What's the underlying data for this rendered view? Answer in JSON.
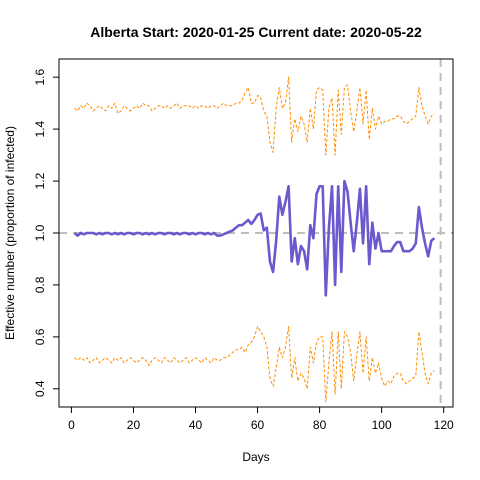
{
  "chart_data": {
    "type": "line",
    "title": "Alberta Start:  2020-01-25   Current date:  2020-05-22",
    "xlabel": "Days",
    "ylabel": "Effective number (proportion of infected)",
    "xlim": [
      -4,
      123
    ],
    "ylim": [
      0.33,
      1.67
    ],
    "xticks": [
      0,
      20,
      40,
      60,
      80,
      100,
      120
    ],
    "yticks": [
      0.4,
      0.6,
      0.8,
      1.0,
      1.2,
      1.4,
      1.6
    ],
    "ytick_labels": [
      "0.4",
      "0.6",
      "0.8",
      "1.0",
      "1.2",
      "1.4",
      "1.6"
    ],
    "reference_hline": 1.0,
    "reference_vline": 119,
    "grid": false,
    "legend": "none",
    "colors": {
      "estimate": "#6a5acd",
      "bounds": "#ff8c00",
      "reference": "#bebebe"
    },
    "series": [
      {
        "role": "estimate",
        "x": [
          1,
          2,
          3,
          4,
          5,
          6,
          7,
          8,
          9,
          10,
          11,
          12,
          13,
          14,
          15,
          16,
          17,
          18,
          19,
          20,
          21,
          22,
          23,
          24,
          25,
          26,
          27,
          28,
          29,
          30,
          31,
          32,
          33,
          34,
          35,
          36,
          37,
          38,
          39,
          40,
          41,
          42,
          43,
          44,
          45,
          46,
          47,
          48,
          49,
          50,
          51,
          52,
          53,
          54,
          55,
          56,
          57,
          58,
          59,
          60,
          61,
          62,
          63,
          64,
          65,
          66,
          67,
          68,
          69,
          70,
          71,
          72,
          73,
          74,
          75,
          76,
          77,
          78,
          79,
          80,
          81,
          82,
          83,
          84,
          85,
          86,
          87,
          88,
          89,
          90,
          91,
          92,
          93,
          94,
          95,
          96,
          97,
          98,
          99,
          100,
          101,
          102,
          103,
          104,
          105,
          106,
          107,
          108,
          109,
          110,
          111,
          112,
          113,
          114,
          115,
          116,
          117,
          118,
          119
        ],
        "y": [
          1.0,
          0.99,
          1.0,
          0.995,
          1.0,
          1.0,
          1.0,
          0.995,
          1.0,
          0.995,
          1.0,
          1.0,
          0.995,
          1.0,
          0.995,
          1.0,
          0.995,
          1.0,
          1.0,
          0.995,
          1.0,
          1.0,
          0.995,
          1.0,
          0.995,
          1.0,
          0.995,
          1.0,
          1.0,
          0.995,
          1.0,
          1.0,
          0.995,
          1.0,
          0.995,
          1.0,
          1.0,
          0.995,
          1.0,
          0.995,
          1.0,
          1.0,
          0.995,
          1.0,
          0.995,
          1.0,
          0.99,
          0.99,
          0.995,
          1.0,
          1.005,
          1.01,
          1.02,
          1.03,
          1.03,
          1.04,
          1.05,
          1.035,
          1.05,
          1.07,
          1.075,
          1.01,
          1.02,
          0.89,
          0.85,
          0.97,
          1.14,
          1.07,
          1.12,
          1.18,
          0.89,
          0.98,
          0.88,
          0.95,
          0.93,
          0.86,
          1.03,
          0.98,
          1.15,
          1.18,
          1.18,
          0.76,
          1.02,
          1.18,
          0.8,
          1.18,
          0.85,
          1.2,
          1.16,
          1.04,
          0.93,
          1.04,
          1.17,
          0.96,
          1.18,
          0.88,
          1.04,
          0.94,
          1.0,
          0.93,
          0.93,
          0.93,
          0.93,
          0.95,
          0.965,
          0.965,
          0.93,
          0.93,
          0.93,
          0.94,
          0.96,
          1.1,
          1.02,
          0.96,
          0.91,
          0.97,
          0.98,
          null,
          null
        ]
      },
      {
        "role": "upper-bound",
        "x": [
          1,
          2,
          3,
          4,
          5,
          6,
          7,
          8,
          9,
          10,
          11,
          12,
          13,
          14,
          15,
          16,
          17,
          18,
          19,
          20,
          21,
          22,
          23,
          24,
          25,
          26,
          27,
          28,
          29,
          30,
          31,
          32,
          33,
          34,
          35,
          36,
          37,
          38,
          39,
          40,
          41,
          42,
          43,
          44,
          45,
          46,
          47,
          48,
          49,
          50,
          51,
          52,
          53,
          54,
          55,
          56,
          57,
          58,
          59,
          60,
          61,
          62,
          63,
          64,
          65,
          66,
          67,
          68,
          69,
          70,
          71,
          72,
          73,
          74,
          75,
          76,
          77,
          78,
          79,
          80,
          81,
          82,
          83,
          84,
          85,
          86,
          87,
          88,
          89,
          90,
          91,
          92,
          93,
          94,
          95,
          96,
          97,
          98,
          99,
          100,
          101,
          102,
          103,
          104,
          105,
          106,
          107,
          108,
          109,
          110,
          111,
          112,
          113,
          114,
          115,
          116,
          117,
          118,
          119
        ],
        "y": [
          1.48,
          1.47,
          1.49,
          1.48,
          1.5,
          1.49,
          1.47,
          1.48,
          1.49,
          1.48,
          1.47,
          1.49,
          1.48,
          1.5,
          1.46,
          1.47,
          1.49,
          1.48,
          1.47,
          1.48,
          1.49,
          1.48,
          1.5,
          1.49,
          1.49,
          1.47,
          1.48,
          1.49,
          1.49,
          1.48,
          1.49,
          1.48,
          1.49,
          1.5,
          1.48,
          1.49,
          1.49,
          1.49,
          1.48,
          1.49,
          1.48,
          1.49,
          1.49,
          1.48,
          1.49,
          1.49,
          1.48,
          1.49,
          1.5,
          1.49,
          1.49,
          1.49,
          1.5,
          1.5,
          1.51,
          1.54,
          1.56,
          1.5,
          1.5,
          1.53,
          1.52,
          1.47,
          1.45,
          1.35,
          1.31,
          1.48,
          1.56,
          1.48,
          1.5,
          1.6,
          1.35,
          1.44,
          1.39,
          1.45,
          1.42,
          1.35,
          1.48,
          1.4,
          1.55,
          1.56,
          1.55,
          1.3,
          1.48,
          1.52,
          1.3,
          1.55,
          1.38,
          1.56,
          1.57,
          1.47,
          1.39,
          1.47,
          1.56,
          1.42,
          1.55,
          1.36,
          1.48,
          1.4,
          1.45,
          1.42,
          1.43,
          1.43,
          1.44,
          1.44,
          1.45,
          1.45,
          1.43,
          1.42,
          1.43,
          1.44,
          1.45,
          1.56,
          1.49,
          1.45,
          1.42,
          1.45,
          1.46,
          null,
          null
        ]
      },
      {
        "role": "lower-bound",
        "x": [
          1,
          2,
          3,
          4,
          5,
          6,
          7,
          8,
          9,
          10,
          11,
          12,
          13,
          14,
          15,
          16,
          17,
          18,
          19,
          20,
          21,
          22,
          23,
          24,
          25,
          26,
          27,
          28,
          29,
          30,
          31,
          32,
          33,
          34,
          35,
          36,
          37,
          38,
          39,
          40,
          41,
          42,
          43,
          44,
          45,
          46,
          47,
          48,
          49,
          50,
          51,
          52,
          53,
          54,
          55,
          56,
          57,
          58,
          59,
          60,
          61,
          62,
          63,
          64,
          65,
          66,
          67,
          68,
          69,
          70,
          71,
          72,
          73,
          74,
          75,
          76,
          77,
          78,
          79,
          80,
          81,
          82,
          83,
          84,
          85,
          86,
          87,
          88,
          89,
          90,
          91,
          92,
          93,
          94,
          95,
          96,
          97,
          98,
          99,
          100,
          101,
          102,
          103,
          104,
          105,
          106,
          107,
          108,
          109,
          110,
          111,
          112,
          113,
          114,
          115,
          116,
          117,
          118,
          119
        ],
        "y": [
          0.52,
          0.51,
          0.52,
          0.51,
          0.52,
          0.5,
          0.51,
          0.52,
          0.5,
          0.51,
          0.52,
          0.51,
          0.5,
          0.52,
          0.51,
          0.52,
          0.5,
          0.51,
          0.52,
          0.51,
          0.5,
          0.51,
          0.52,
          0.51,
          0.49,
          0.51,
          0.52,
          0.51,
          0.5,
          0.52,
          0.51,
          0.5,
          0.52,
          0.51,
          0.5,
          0.51,
          0.52,
          0.5,
          0.51,
          0.52,
          0.51,
          0.5,
          0.52,
          0.51,
          0.5,
          0.52,
          0.51,
          0.51,
          0.52,
          0.52,
          0.53,
          0.54,
          0.55,
          0.55,
          0.56,
          0.54,
          0.57,
          0.58,
          0.6,
          0.64,
          0.62,
          0.6,
          0.56,
          0.44,
          0.41,
          0.48,
          0.56,
          0.52,
          0.56,
          0.64,
          0.44,
          0.52,
          0.43,
          0.46,
          0.44,
          0.4,
          0.56,
          0.5,
          0.58,
          0.6,
          0.6,
          0.35,
          0.5,
          0.62,
          0.38,
          0.62,
          0.4,
          0.62,
          0.6,
          0.54,
          0.43,
          0.53,
          0.62,
          0.46,
          0.6,
          0.43,
          0.52,
          0.46,
          0.5,
          0.44,
          0.41,
          0.43,
          0.42,
          0.45,
          0.46,
          0.46,
          0.43,
          0.42,
          0.43,
          0.44,
          0.45,
          0.62,
          0.54,
          0.46,
          0.42,
          0.46,
          0.47,
          null,
          null
        ]
      }
    ]
  }
}
